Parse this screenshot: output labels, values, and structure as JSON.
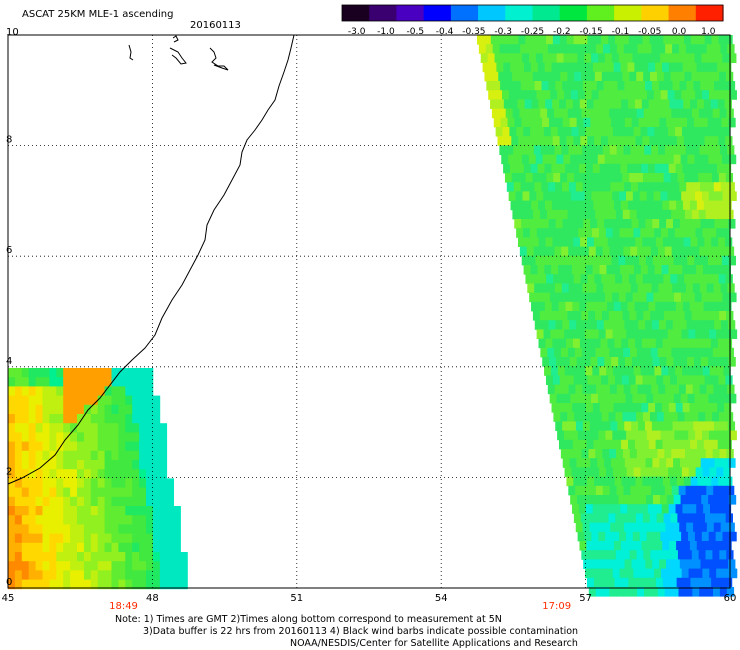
{
  "header": {
    "title": "ASCAT 25KM MLE-1 ascending",
    "date": "20160113"
  },
  "colorbar": {
    "tick_labels": [
      "-3.0",
      "-1.0",
      "-0.5",
      "-0.4",
      "-0.35",
      "-0.3",
      "-0.25",
      "-0.2",
      "-0.15",
      "-0.1",
      "-0.05",
      "0.0",
      "1.0"
    ],
    "colors": [
      "#1a0020",
      "#3a0070",
      "#4a00c0",
      "#0000ff",
      "#0070ff",
      "#00c8ff",
      "#00f0d0",
      "#00e890",
      "#00e840",
      "#60f020",
      "#c8f000",
      "#ffd000",
      "#ff8000",
      "#ff2000"
    ]
  },
  "chart_data": {
    "type": "heatmap",
    "x_ticks": [
      "45",
      "48",
      "51",
      "54",
      "57",
      "60"
    ],
    "y_ticks": [
      "0",
      "2",
      "4",
      "6",
      "8",
      "10"
    ],
    "xlim": [
      45,
      60
    ],
    "ylim": [
      0,
      10
    ],
    "grid": true,
    "pass_times": [
      {
        "label": "18:49",
        "x": 47.4
      },
      {
        "label": "17:09",
        "x": 56.4
      }
    ]
  },
  "notes": {
    "line1": "Note: 1) Times are GMT 2)Times along bottom correspond to measurement at 5N",
    "line2": "3)Data buffer is 22 hrs from 20160113 4) Black wind barbs indicate possible contamination",
    "line3": "NOAA/NESDIS/Center for Satellite Applications and Research"
  }
}
